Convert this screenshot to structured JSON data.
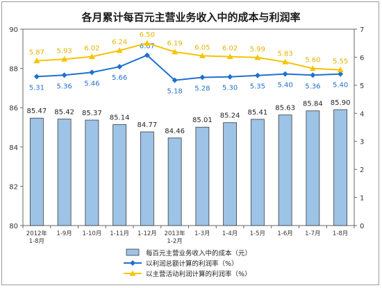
{
  "chart_data": {
    "type": "bar",
    "title": "各月累计每百元主营业务收入中的成本与利润率",
    "categories": [
      [
        "2012年",
        "1-8月"
      ],
      [
        "1-9月"
      ],
      [
        "1-10月"
      ],
      [
        "1-11月"
      ],
      [
        "1-12月"
      ],
      [
        "2013年",
        "1-2月"
      ],
      [
        "1-3月"
      ],
      [
        "1-4月"
      ],
      [
        "1-5月"
      ],
      [
        "1-6月"
      ],
      [
        "1-7月"
      ],
      [
        "1-8月"
      ]
    ],
    "ylim_left": [
      80,
      90
    ],
    "yticks_left": [
      80,
      82,
      84,
      86,
      88,
      90
    ],
    "ylim_right": [
      0,
      7
    ],
    "yticks_right": [
      0,
      1,
      2,
      3,
      4,
      5,
      6,
      7
    ],
    "grid": false,
    "legend_position": "bottom",
    "series": [
      {
        "name": "每百元主营业务收入中的成本（元）",
        "type": "bar",
        "axis": "left",
        "color": "#9dc3e6",
        "values": [
          85.47,
          85.42,
          85.37,
          85.14,
          84.77,
          84.46,
          85.01,
          85.24,
          85.41,
          85.63,
          85.84,
          85.9
        ]
      },
      {
        "name": "以利润总额计算的利润率（%）",
        "type": "line",
        "axis": "right",
        "color": "#1f6fd1",
        "marker": "diamond",
        "values": [
          5.31,
          5.36,
          5.46,
          5.66,
          6.07,
          5.18,
          5.28,
          5.3,
          5.35,
          5.4,
          5.36,
          5.4
        ]
      },
      {
        "name": "以主营活动利润计算的利润率（%）",
        "type": "line",
        "axis": "right",
        "color": "#f5c400",
        "marker": "triangle",
        "values": [
          5.87,
          5.93,
          6.02,
          6.24,
          6.5,
          6.19,
          6.05,
          6.02,
          5.99,
          5.83,
          5.6,
          5.55
        ]
      }
    ]
  }
}
